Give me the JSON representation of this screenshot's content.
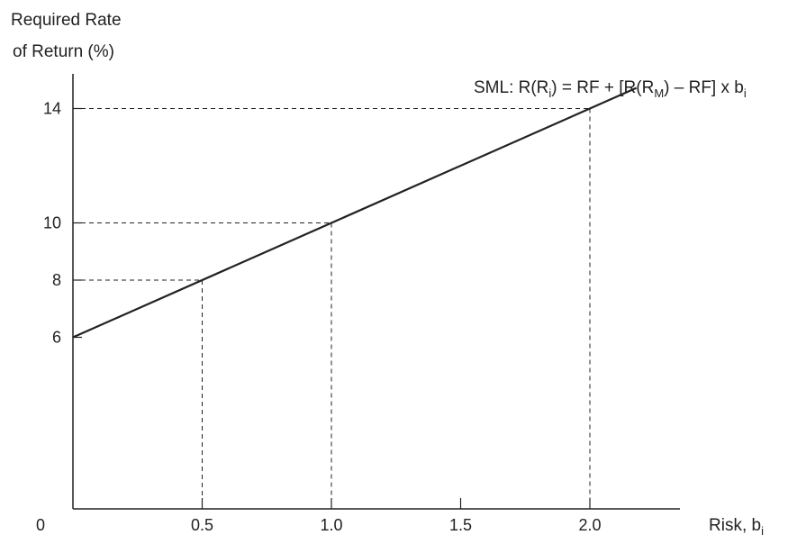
{
  "chart_data": {
    "type": "line",
    "title": "",
    "ylabel_line1": "Required Rate",
    "ylabel_line2": "of Return (%)",
    "xlabel_main": "Risk, b",
    "xlabel_sub": "i",
    "formula": {
      "prefix": "SML:  R(R",
      "sub1": "i",
      "mid1": ") = RF + [R(R",
      "sub2": "M",
      "mid2": ") – RF] x b",
      "sub3": "i"
    },
    "x_ticks": [
      {
        "value": 0,
        "label": "0"
      },
      {
        "value": 0.5,
        "label": "0.5"
      },
      {
        "value": 1.0,
        "label": "1.0"
      },
      {
        "value": 1.5,
        "label": "1.5"
      },
      {
        "value": 2.0,
        "label": "2.0"
      }
    ],
    "y_ticks": [
      {
        "value": 6,
        "label": "6"
      },
      {
        "value": 8,
        "label": "8"
      },
      {
        "value": 10,
        "label": "10"
      },
      {
        "value": 14,
        "label": "14"
      }
    ],
    "xlim": [
      0,
      2.4
    ],
    "y_axis_note": "y axis begins at 0; 6 is the risk-free rate intercept",
    "series": [
      {
        "x": [
          0,
          2.18
        ],
        "y": [
          6,
          14.72
        ]
      }
    ],
    "guides": [
      {
        "x": 0.5,
        "y": 8
      },
      {
        "x": 1.0,
        "y": 10
      },
      {
        "x": 2.0,
        "y": 14
      }
    ],
    "line_color": "#222222",
    "grid": false
  }
}
